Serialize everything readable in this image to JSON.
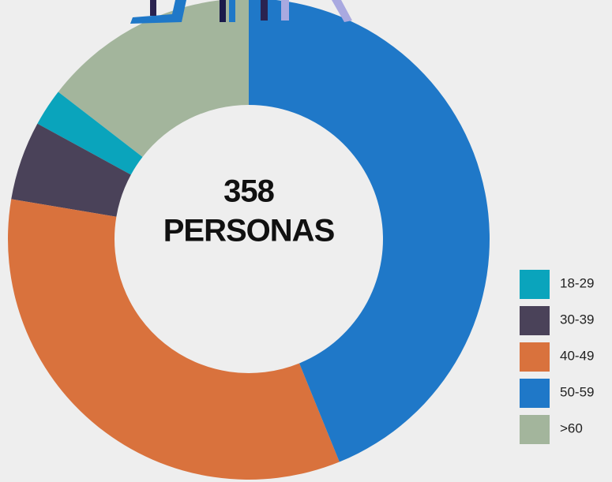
{
  "chart_data": {
    "type": "donut",
    "center_label": "358",
    "center_sublabel": "PERSONAS",
    "categories": [
      "18-29",
      "30-39",
      "40-49",
      "50-59",
      ">60"
    ],
    "values": [
      9,
      19,
      121,
      157,
      52
    ],
    "colors": [
      "#0aa4bc",
      "#4a4259",
      "#d9723d",
      "#1f78c8",
      "#a3b59c"
    ],
    "legend": "right"
  }
}
